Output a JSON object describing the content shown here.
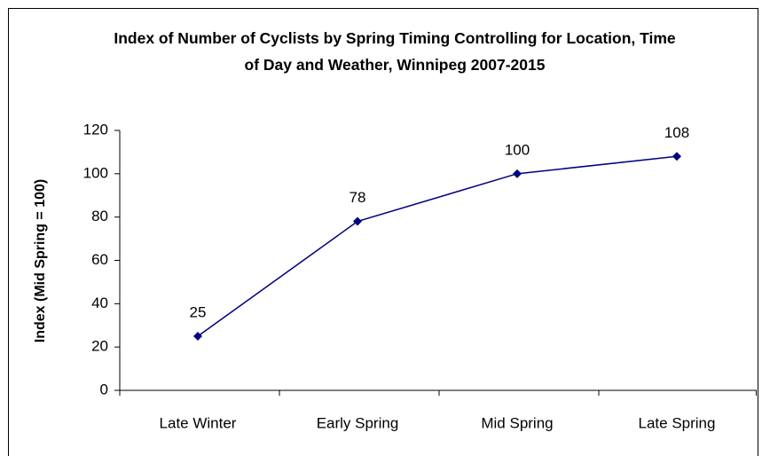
{
  "chart_data": {
    "type": "line",
    "title": "Index of Number of Cyclists by Spring Timing Controlling for Location, Time of Day and Weather, Winnipeg 2007-2015",
    "y_label": "Index (Mid Spring = 100)",
    "categories": [
      "Late Winter",
      "Early Spring",
      "Mid Spring",
      "Late Spring"
    ],
    "values": [
      25,
      78,
      100,
      108
    ],
    "color": "#000080",
    "ylim": [
      0,
      120
    ],
    "yticks": [
      0,
      20,
      40,
      60,
      80,
      100,
      120
    ],
    "grid": false
  }
}
